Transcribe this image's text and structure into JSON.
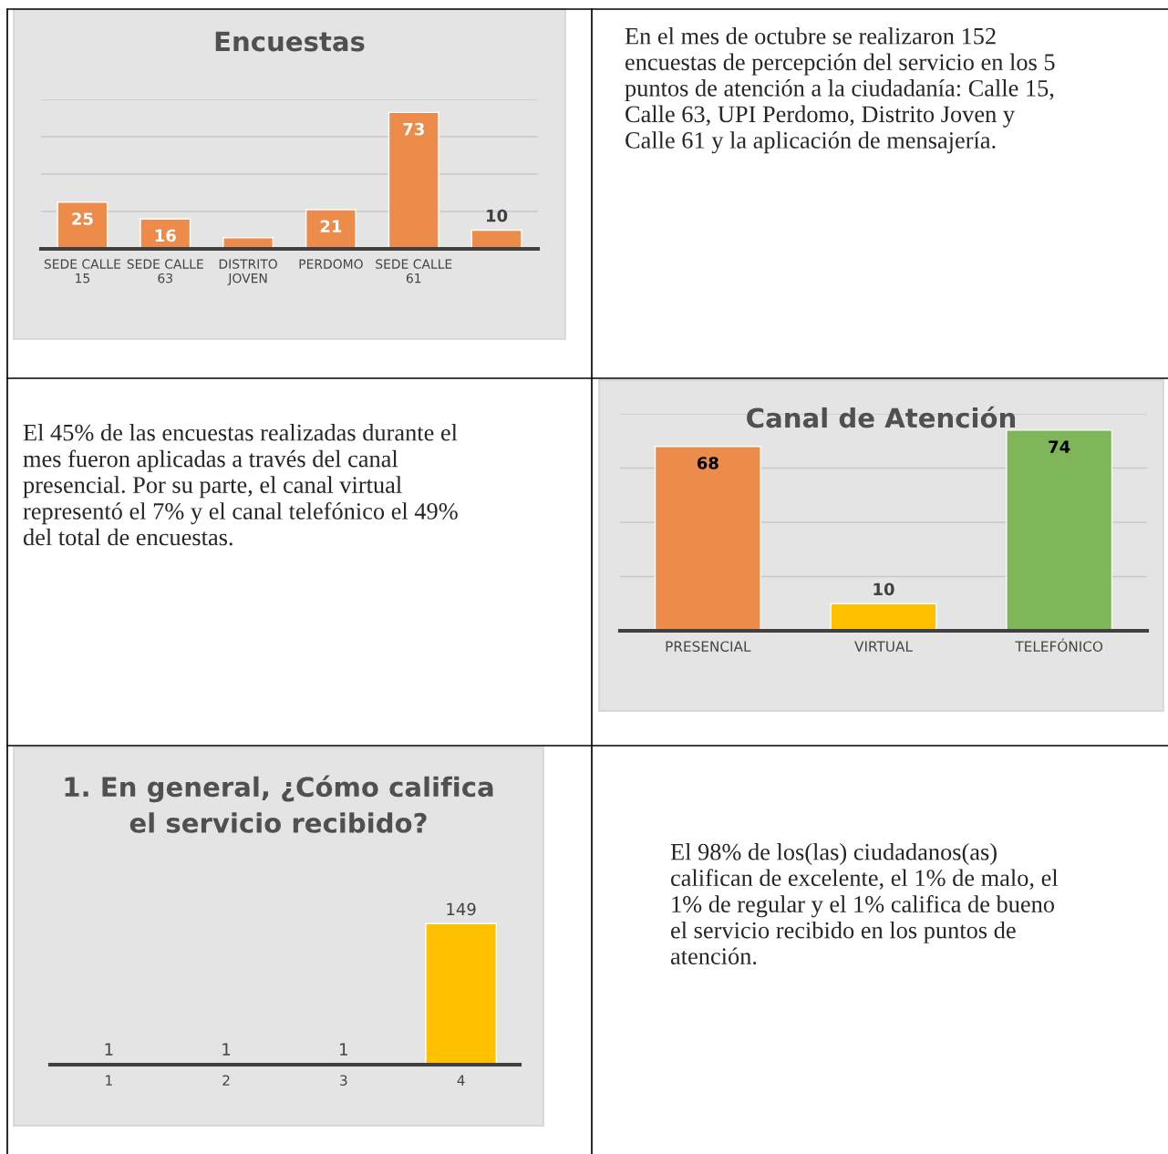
{
  "chart_data": [
    {
      "type": "bar",
      "title": "Encuestas",
      "categories": [
        "SEDE CALLE 15",
        "SEDE CALLE 63",
        "DISTRITO JOVEN",
        "PERDOMO",
        "SEDE CALLE 61",
        null
      ],
      "values": [
        25,
        16,
        6,
        21,
        73,
        10
      ],
      "color": "#ed8b4a",
      "value_labels": [
        "25",
        "16",
        null,
        "21",
        "73",
        "10"
      ],
      "ylim": [
        0,
        80
      ],
      "yticks": [
        {
          "value": 0,
          "label": null
        },
        {
          "value": 20,
          "label": null
        },
        {
          "value": 40,
          "label": null
        },
        {
          "value": 60,
          "label": null
        },
        {
          "value": 80,
          "label": null
        }
      ],
      "grid": "y"
    },
    {
      "type": "other",
      "annotations": [
        "En el mes de octubre se realizaron 152\nencuestas de percepción del servicio en los 5\npuntos de atención a la ciudadanía: Calle 15,\nCalle 63, UPI Perdomo, Distrito Joven y\nCalle 61 y la aplicación de mensajería."
      ]
    },
    {
      "type": "other",
      "annotations": [
        "El 45% de las encuestas realizadas durante el\nmes fueron aplicadas a través del canal\npresencial. Por su parte, el canal virtual\nrepresentó el 7% y el canal telefónico el 49%\ndel total de encuestas."
      ]
    },
    {
      "type": "bar",
      "title": "Canal de Atención",
      "categories": [
        "PRESENCIAL",
        "VIRTUAL",
        "TELEFÓNICO"
      ],
      "values": [
        68,
        10,
        74
      ],
      "colors": [
        "#ed8b4a",
        "#ffc000",
        "#7fb65a"
      ],
      "data_labels": true,
      "ylim": [
        0,
        80
      ],
      "yticks": [
        {
          "value": 0,
          "label": null
        },
        {
          "value": 20,
          "label": null
        },
        {
          "value": 40,
          "label": null
        },
        {
          "value": 60,
          "label": null
        },
        {
          "value": 80,
          "label": null
        }
      ],
      "grid": "y"
    },
    {
      "type": "bar",
      "title": "1. En general, ¿Cómo califica\nel servicio recibido?",
      "categories": [
        "1",
        "2",
        "3",
        "4"
      ],
      "values": [
        1,
        1,
        1,
        149
      ],
      "colors": [
        "#4472c4",
        "#ed7d31",
        "#a5a5a5",
        "#ffc000"
      ],
      "data_labels": true
    },
    {
      "type": "other",
      "annotations": [
        "El 98% de los(las) ciudadanos(as)\ncalifican de excelente, el 1% de malo, el\n1% de regular y el 1% califica de bueno\nel servicio recibido en los puntos de\natención."
      ]
    }
  ]
}
